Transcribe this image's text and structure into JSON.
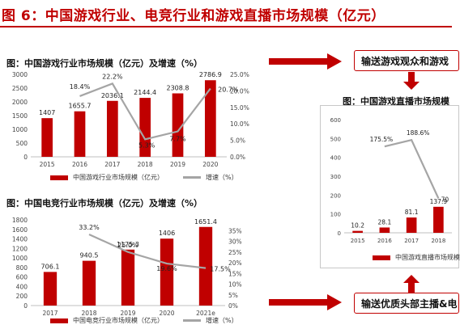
{
  "header": {
    "title": "图 6：中国游戏行业、电竞行业和游戏直播市场规模（亿元）"
  },
  "panels": {
    "game": {
      "title": "图：中国游戏行业市场规模（亿元）及增速（%）"
    },
    "esports": {
      "title": "图：中国电竞行业市场规模（亿元）及增速（%）"
    },
    "live": {
      "title": "图：中国游戏直播市场规模"
    }
  },
  "boxes": {
    "top": "输送游戏观众和游戏",
    "bottom": "输送优质头部主播&电"
  },
  "legend": {
    "game_bar": "中国游戏行业市场规模（亿元）",
    "game_line": "增速（%）",
    "esports_bar": "中国电竞行业市场规模（亿元）",
    "esports_line": "增速（%）",
    "live_bar": "中国游戏直播市场规模"
  },
  "colors": {
    "accent": "#c00000",
    "line": "#a5a5a5",
    "grid": "#d9d9d9"
  },
  "chart_data": [
    {
      "type": "bar",
      "title": "中国游戏行业市场规模（亿元）及增速（%）",
      "categories": [
        "2015",
        "2016",
        "2017",
        "2018",
        "2019",
        "2020"
      ],
      "series": [
        {
          "name": "中国游戏行业市场规模（亿元）",
          "type": "bar",
          "values": [
            1407,
            1655.7,
            2036.1,
            2144.4,
            2308.8,
            2786.9
          ],
          "labels": [
            "1407",
            "1655.7",
            "2036.1",
            "2144.4",
            "2308.8",
            "2786.9"
          ]
        },
        {
          "name": "增速（%）",
          "type": "line",
          "axis": "right",
          "values": [
            null,
            18.4,
            22.2,
            5.3,
            7.7,
            20.7
          ],
          "labels": [
            "",
            "18.4%",
            "22.2%",
            "5.3%",
            "7.7%",
            "20.7%"
          ]
        }
      ],
      "ylim": [
        0,
        3000
      ],
      "yticks": [
        0,
        500,
        1000,
        1500,
        2000,
        2500,
        3000
      ],
      "y2lim": [
        0,
        25
      ],
      "y2ticks": [
        "0.0%",
        "5.0%",
        "10.0%",
        "15.0%",
        "20.0%",
        "25.0%"
      ],
      "grid": false
    },
    {
      "type": "bar",
      "title": "中国电竞行业市场规模（亿元）及增速（%）",
      "categories": [
        "2017",
        "2018",
        "2019",
        "2020",
        "2021e"
      ],
      "series": [
        {
          "name": "中国电竞行业市场规模（亿元）",
          "type": "bar",
          "values": [
            706.1,
            940.5,
            1175.3,
            1406,
            1651.4
          ],
          "labels": [
            "706.1",
            "940.5",
            "1175.3",
            "1406",
            "1651.4"
          ]
        },
        {
          "name": "增速（%）",
          "type": "line",
          "axis": "right",
          "values": [
            null,
            33.2,
            25.0,
            19.6,
            17.5
          ],
          "labels": [
            "",
            "33.2%",
            "25.0%",
            "19.6%",
            "17.5%"
          ]
        }
      ],
      "ylim": [
        0,
        1800
      ],
      "yticks": [
        0,
        200,
        400,
        600,
        800,
        1000,
        1200,
        1400,
        1600,
        1800
      ],
      "y2lim": [
        0,
        40
      ],
      "y2ticks": [
        "0%",
        "5%",
        "10%",
        "15%",
        "20%",
        "25%",
        "30%",
        "35%"
      ],
      "grid": false
    },
    {
      "type": "bar",
      "title": "中国游戏直播市场规模",
      "categories": [
        "2015",
        "2016",
        "2017",
        "2018"
      ],
      "series": [
        {
          "name": "中国游戏直播市场规模",
          "type": "bar",
          "values": [
            10.2,
            28.1,
            81.1,
            137.9
          ],
          "labels": [
            "10.2",
            "28.1",
            "81.1",
            "137.9"
          ]
        },
        {
          "type": "line",
          "axis": "right",
          "values": [
            null,
            175.5,
            188.6,
            70
          ],
          "labels": [
            "",
            "175.5%",
            "188.6%",
            "70"
          ]
        }
      ],
      "ylim": [
        0,
        600
      ],
      "yticks": [
        0,
        100,
        200,
        300,
        400,
        500,
        600
      ],
      "grid": false
    }
  ]
}
